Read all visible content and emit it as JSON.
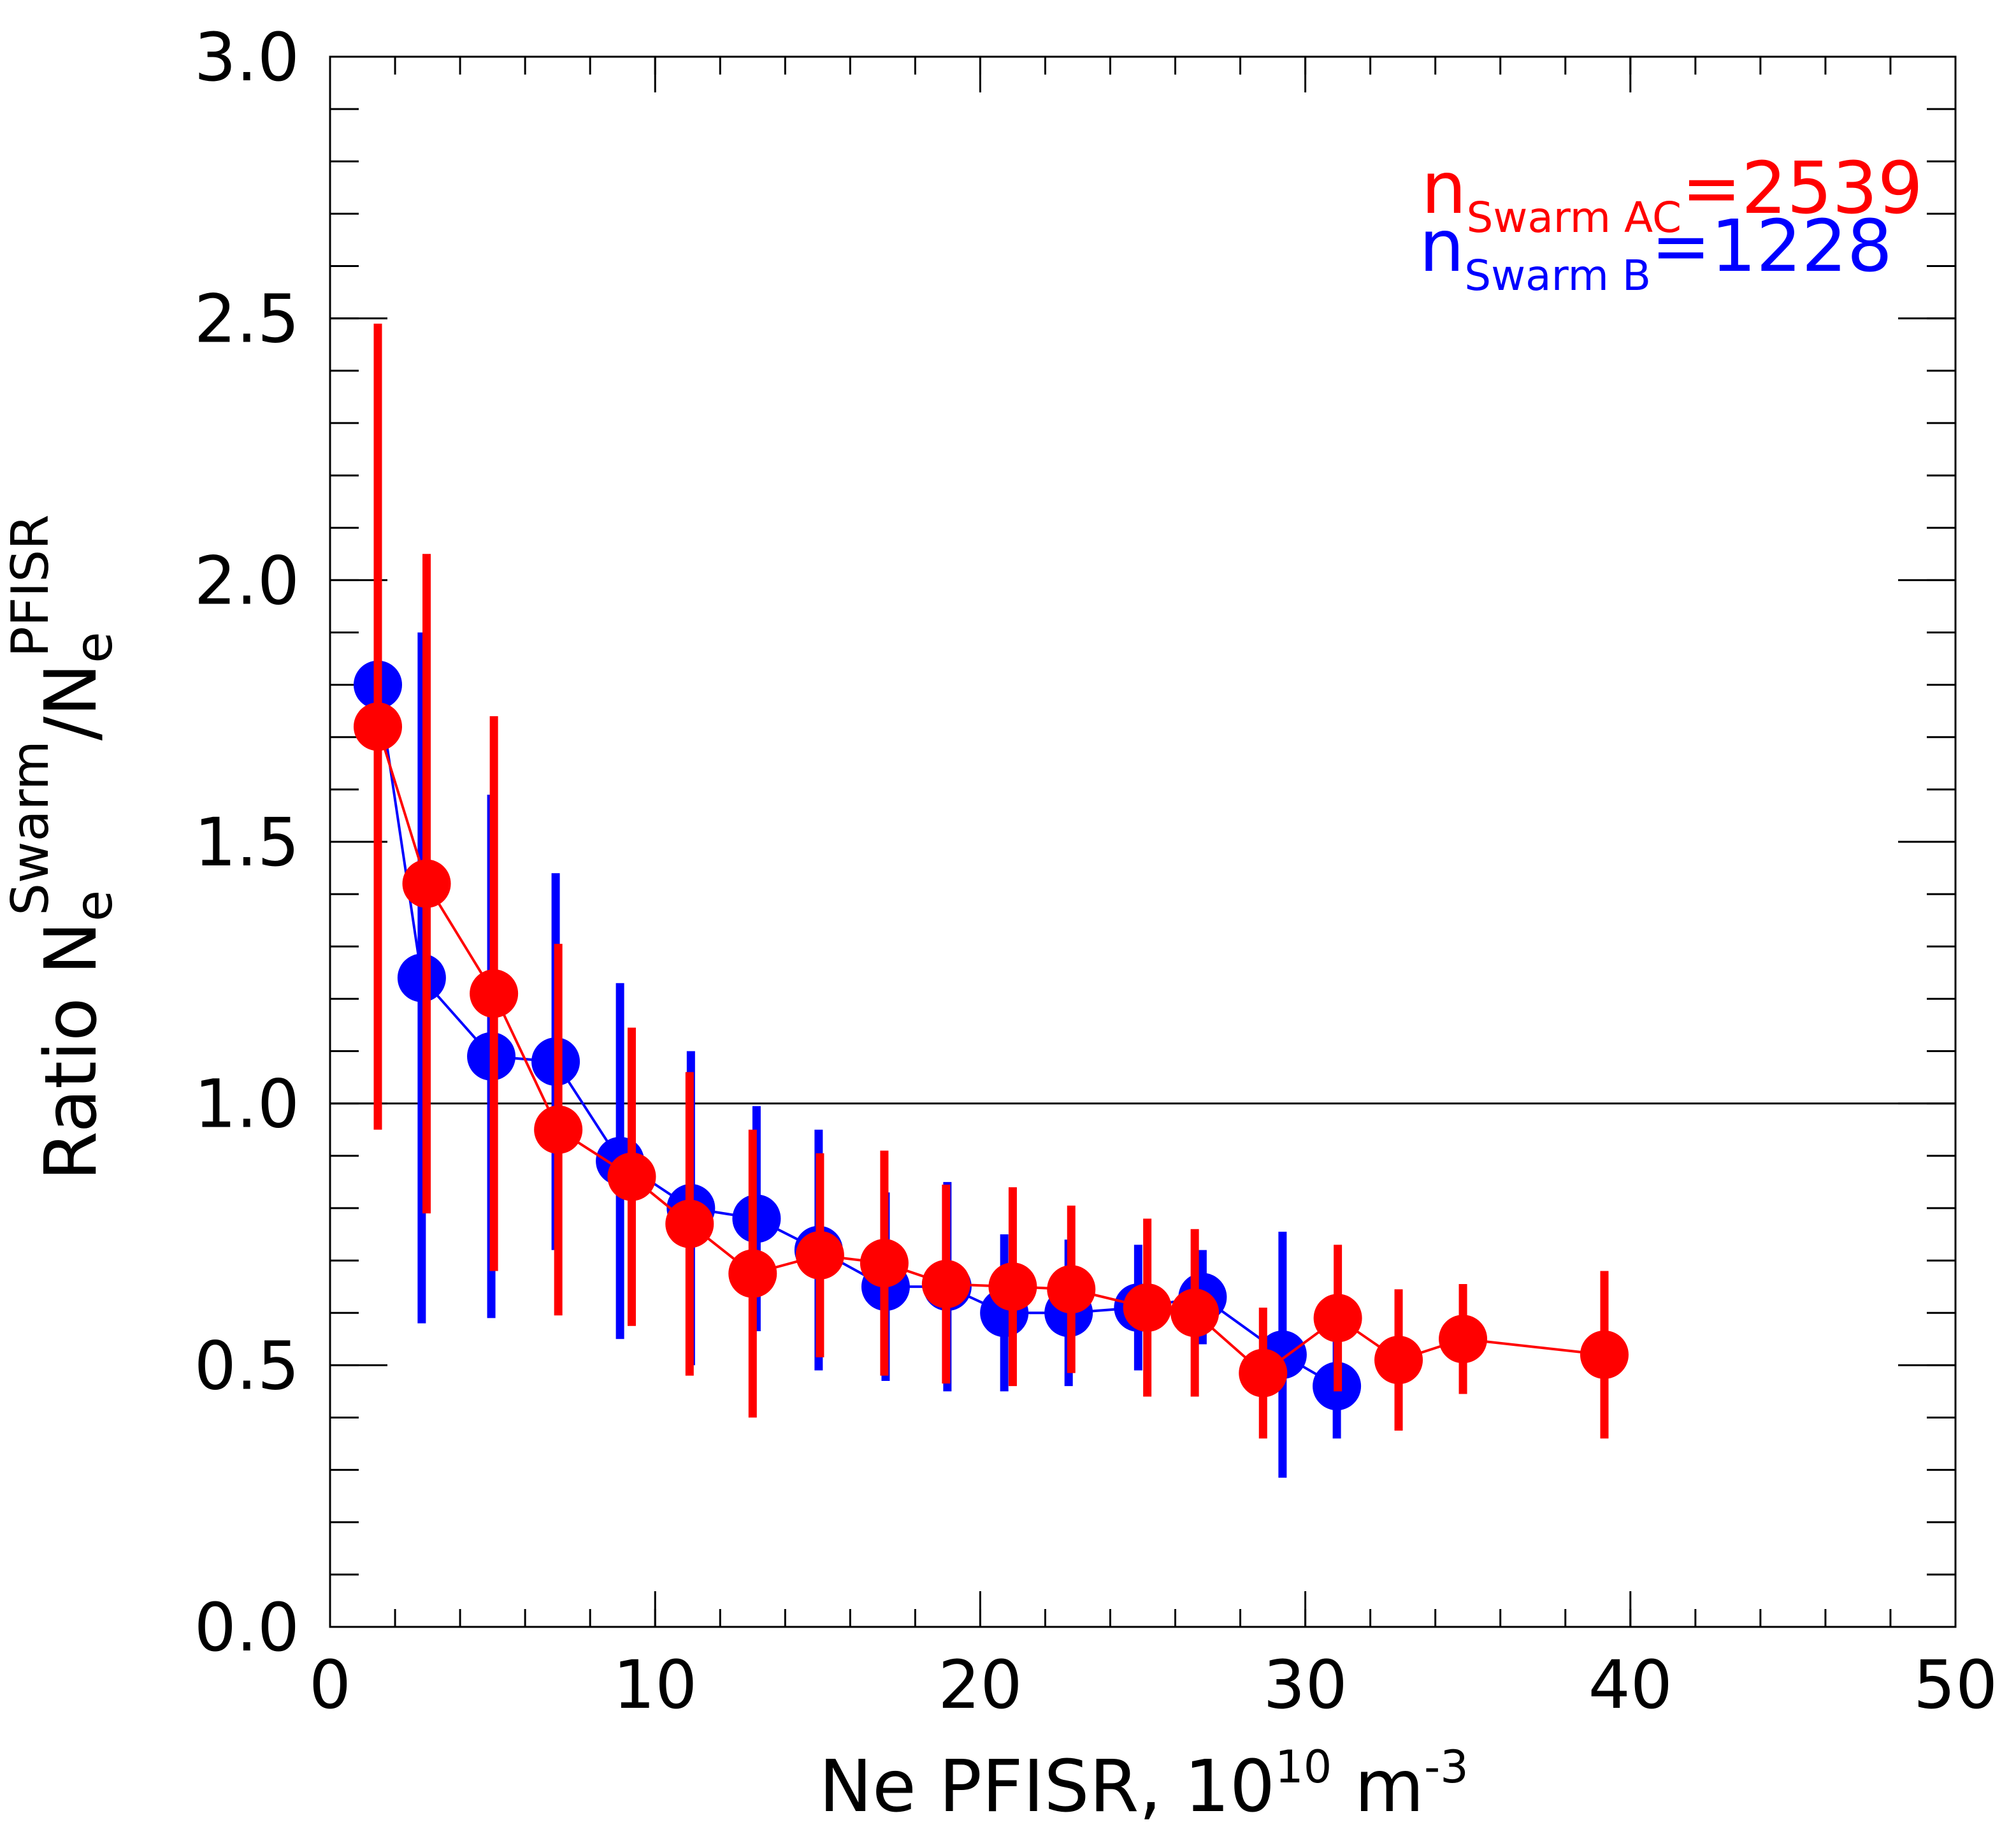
{
  "chart_data": {
    "type": "errorbar-scatter",
    "xlabel": {
      "text": "Ne PFISR, 10",
      "sup1": "10",
      "mid": " m",
      "sup2": "-3"
    },
    "ylabel": {
      "text": "Ratio N",
      "sub1": "e",
      "sup1": "Swarm",
      "mid": "/N",
      "sub2": "e",
      "sup2": "PFISR"
    },
    "xlim": [
      0,
      50
    ],
    "xticks": [
      0,
      10,
      20,
      30,
      40,
      50
    ],
    "xminor": 2,
    "ylim": [
      0,
      3
    ],
    "yticks": [
      {
        "value": 0,
        "label": "0.0"
      },
      {
        "value": 0.5,
        "label": "0.5"
      },
      {
        "value": 1,
        "label": "1.0"
      },
      {
        "value": 1.5,
        "label": "1.5"
      },
      {
        "value": 2,
        "label": "2.0"
      },
      {
        "value": 2.5,
        "label": "2.5"
      },
      {
        "value": 3,
        "label": "3.0"
      }
    ],
    "yminor": 0.1,
    "hline": 1,
    "annotations": [
      {
        "text": "n",
        "sub": "Swarm AC",
        "rest": "=2539",
        "color": "#ff0000"
      },
      {
        "text": "n",
        "sub": "Swarm B",
        "rest": "=1228",
        "color": "#0000ff"
      }
    ],
    "series": [
      {
        "name": "Swarm B",
        "color": "#0000ff",
        "x": [
          1.47,
          2.82,
          4.96,
          6.94,
          8.92,
          11.1,
          13.12,
          15.03,
          17.09,
          18.99,
          20.74,
          22.72,
          24.86,
          26.84,
          29.3,
          30.97
        ],
        "values": [
          1.8,
          1.24,
          1.09,
          1.08,
          0.89,
          0.8,
          0.78,
          0.72,
          0.65,
          0.65,
          0.6,
          0.6,
          0.61,
          0.63,
          0.52,
          0.46
        ],
        "errors": [
          0.6,
          0.66,
          0.5,
          0.36,
          0.34,
          0.3,
          0.215,
          0.23,
          0.18,
          0.2,
          0.15,
          0.14,
          0.12,
          0.09,
          0.235,
          0.1
        ]
      },
      {
        "name": "Swarm AC",
        "color": "#ff0000",
        "x": [
          1.47,
          2.97,
          5.04,
          7.02,
          9.28,
          11.06,
          13.0,
          15.07,
          17.05,
          18.95,
          21.0,
          22.8,
          25.14,
          26.6,
          28.7,
          31.0,
          32.87,
          34.85,
          39.2
        ],
        "values": [
          1.72,
          1.42,
          1.21,
          0.95,
          0.86,
          0.77,
          0.675,
          0.71,
          0.695,
          0.655,
          0.65,
          0.645,
          0.61,
          0.6,
          0.485,
          0.59,
          0.51,
          0.55,
          0.52
        ],
        "errors": [
          0.77,
          0.63,
          0.53,
          0.355,
          0.285,
          0.29,
          0.275,
          0.195,
          0.215,
          0.19,
          0.19,
          0.16,
          0.17,
          0.16,
          0.125,
          0.14,
          0.135,
          0.105,
          0.16
        ]
      }
    ]
  }
}
